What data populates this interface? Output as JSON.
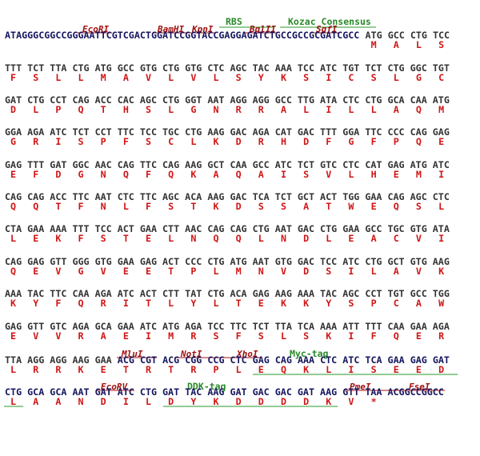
{
  "rows": [
    {
      "segments": [
        {
          "text": "ATAGGGCGGCCGGGAATTCGTCGACTGGATCCGGTACCGAGGAGATCTGCCGCCGCGATCGCC",
          "style": "vector"
        },
        {
          "text": "ATG GCC CTG TCC",
          "style": "insert"
        }
      ],
      "aa": [
        "M",
        "A",
        "L",
        "S"
      ]
    },
    {
      "segments": [
        {
          "text": "TTT TCT TTA CTG ATG GCC GTG CTG GTG CTC AGC TAC AAA TCC ATC TGT TCT CTG GGC TGT",
          "style": "insert"
        }
      ],
      "aa": [
        "F",
        "S",
        "L",
        "L",
        "M",
        "A",
        "V",
        "L",
        "V",
        "L",
        "S",
        "Y",
        "K",
        "S",
        "I",
        "C",
        "S",
        "L",
        "G",
        "C"
      ]
    },
    {
      "segments": [
        {
          "text": "GAT CTG CCT CAG ACC CAC AGC CTG GGT AAT AGG AGG GCC TTG ATA CTC CTG GCA CAA ATG",
          "style": "insert"
        }
      ],
      "aa": [
        "D",
        "L",
        "P",
        "Q",
        "T",
        "H",
        "S",
        "L",
        "G",
        "N",
        "R",
        "R",
        "A",
        "L",
        "I",
        "L",
        "L",
        "A",
        "Q",
        "M"
      ]
    },
    {
      "segments": [
        {
          "text": "GGA AGA ATC TCT CCT TTC TCC TGC CTG AAG GAC AGA CAT GAC TTT GGA TTC CCC CAG GAG",
          "style": "insert"
        }
      ],
      "aa": [
        "G",
        "R",
        "I",
        "S",
        "P",
        "F",
        "S",
        "C",
        "L",
        "K",
        "D",
        "R",
        "H",
        "D",
        "F",
        "G",
        "F",
        "P",
        "Q",
        "E"
      ]
    },
    {
      "segments": [
        {
          "text": "GAG TTT GAT GGC AAC CAG TTC CAG AAG GCT CAA GCC ATC TCT GTC CTC CAT GAG ATG ATC",
          "style": "insert"
        }
      ],
      "aa": [
        "E",
        "F",
        "D",
        "G",
        "N",
        "Q",
        "F",
        "Q",
        "K",
        "A",
        "Q",
        "A",
        "I",
        "S",
        "V",
        "L",
        "H",
        "E",
        "M",
        "I"
      ]
    },
    {
      "segments": [
        {
          "text": "CAG CAG ACC TTC AAT CTC TTC AGC ACA AAG GAC TCA TCT GCT ACT TGG GAA CAG AGC CTC",
          "style": "insert"
        }
      ],
      "aa": [
        "Q",
        "Q",
        "T",
        "F",
        "N",
        "L",
        "F",
        "S",
        "T",
        "K",
        "D",
        "S",
        "S",
        "A",
        "T",
        "W",
        "E",
        "Q",
        "S",
        "L"
      ]
    },
    {
      "segments": [
        {
          "text": "CTA GAA AAA TTT TCC ACT GAA CTT AAC CAG CAG CTG AAT GAC CTG GAA GCC TGC GTG ATA",
          "style": "insert"
        }
      ],
      "aa": [
        "L",
        "E",
        "K",
        "F",
        "S",
        "T",
        "E",
        "L",
        "N",
        "Q",
        "Q",
        "L",
        "N",
        "D",
        "L",
        "E",
        "A",
        "C",
        "V",
        "I"
      ]
    },
    {
      "segments": [
        {
          "text": "CAG GAG GTT GGG GTG GAA GAG ACT CCC CTG ATG AAT GTG GAC TCC ATC CTG GCT GTG AAG",
          "style": "insert"
        }
      ],
      "aa": [
        "Q",
        "E",
        "V",
        "G",
        "V",
        "E",
        "E",
        "T",
        "P",
        "L",
        "M",
        "N",
        "V",
        "D",
        "S",
        "I",
        "L",
        "A",
        "V",
        "K"
      ]
    },
    {
      "segments": [
        {
          "text": "AAA TAC TTC CAA AGA ATC ACT CTT TAT CTG ACA GAG AAG AAA TAC AGC CCT TGT GCC TGG",
          "style": "insert"
        }
      ],
      "aa": [
        "K",
        "Y",
        "F",
        "Q",
        "R",
        "I",
        "T",
        "L",
        "Y",
        "L",
        "T",
        "E",
        "K",
        "K",
        "Y",
        "S",
        "P",
        "C",
        "A",
        "W"
      ]
    },
    {
      "segments": [
        {
          "text": "GAG GTT GTC AGA GCA GAA ATC ATG AGA TCC TTC TCT TTA TCA AAA ATT TTT CAA GAA AGA",
          "style": "insert"
        }
      ],
      "aa": [
        "E",
        "V",
        "V",
        "R",
        "A",
        "E",
        "I",
        "M",
        "R",
        "S",
        "F",
        "S",
        "L",
        "S",
        "K",
        "I",
        "F",
        "Q",
        "E",
        "R"
      ]
    },
    {
      "segments": [
        {
          "text": "TTA AGG AGG AAG GAA",
          "style": "insert"
        },
        {
          "text": "ACG CGT ACG CGG CCG CTC GAG CAG AAA CTC ATC TCA GAA GAG GAT",
          "style": "vector"
        }
      ],
      "aa": [
        "L",
        "R",
        "R",
        "K",
        "E",
        "T",
        "R",
        "T",
        "R",
        "P",
        "L",
        "E",
        "Q",
        "K",
        "L",
        "I",
        "S",
        "E",
        "E",
        "D"
      ]
    },
    {
      "segments": [
        {
          "text": "CTG GCA GCA AAT GAT ATC CTG GAT TAC AAG GAT GAC GAC GAT AAG GTT TAA ACGGCCGGCC",
          "style": "vector"
        }
      ],
      "aa": [
        "L",
        "A",
        "A",
        "N",
        "D",
        "I",
        "L",
        "D",
        "Y",
        "K",
        "D",
        "D",
        "D",
        "D",
        "K",
        "V",
        "*"
      ]
    }
  ],
  "annotations": [
    "EcoRI",
    "BamHI",
    "KpnI",
    "RBS",
    "BglII",
    "SgfI",
    "Kozac Consensus",
    "MluI",
    "NotI",
    "XhoI",
    "Myc-tag",
    "EcoRV",
    "DDK-tag",
    "PmeI",
    "FseI"
  ]
}
